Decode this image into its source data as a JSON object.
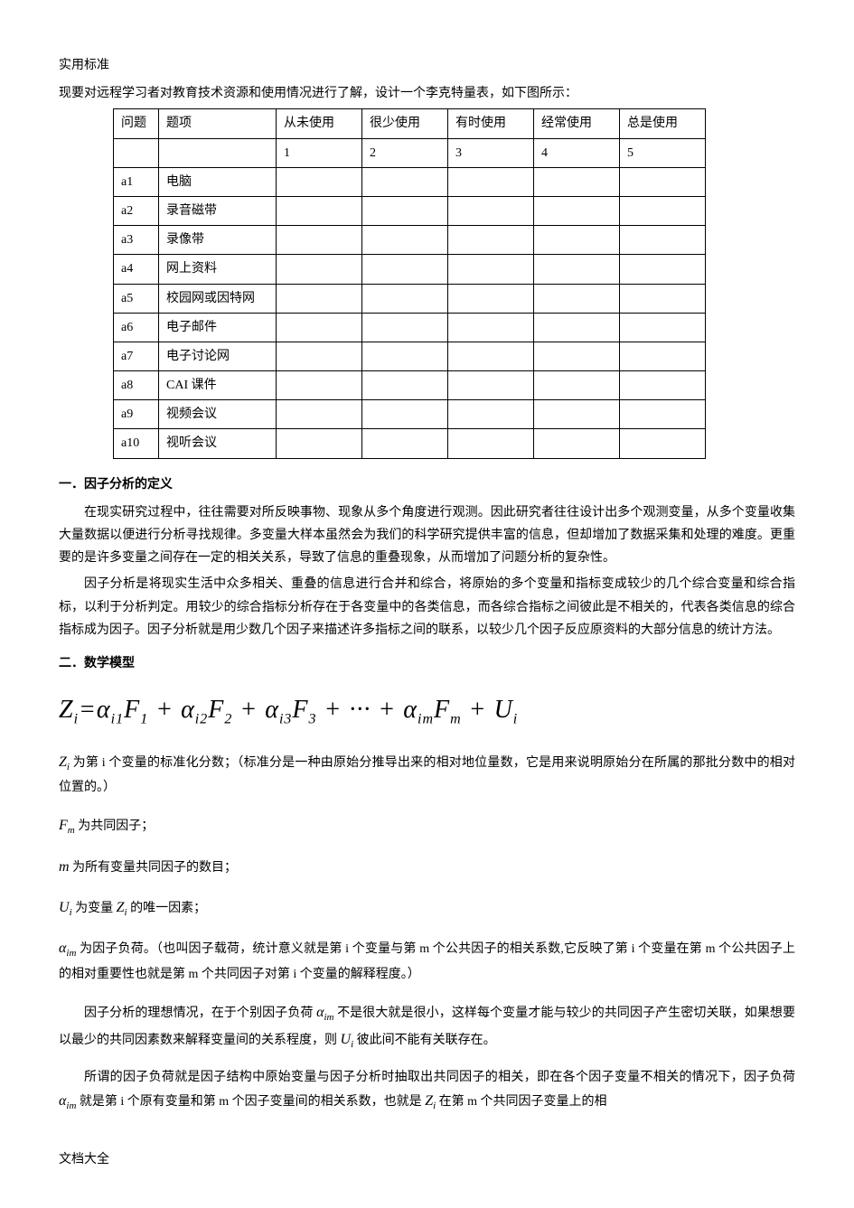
{
  "header": {
    "title": "实用标准",
    "intro": "现要对远程学习者对教育技术资源和使用情况进行了解，设计一个李克特量表，如下图所示："
  },
  "table": {
    "headers": {
      "question": "问题",
      "item": "题项",
      "scale1": "从未使用",
      "scale2": "很少使用",
      "scale3": "有时使用",
      "scale4": "经常使用",
      "scale5": "总是使用"
    },
    "scale_numbers": {
      "n1": "1",
      "n2": "2",
      "n3": "3",
      "n4": "4",
      "n5": "5"
    },
    "rows": [
      {
        "q": "a1",
        "item": "电脑"
      },
      {
        "q": "a2",
        "item": "录音磁带"
      },
      {
        "q": "a3",
        "item": "录像带"
      },
      {
        "q": "a4",
        "item": "网上资料"
      },
      {
        "q": "a5",
        "item": "校园网或因特网"
      },
      {
        "q": "a6",
        "item": "电子邮件"
      },
      {
        "q": "a7",
        "item": "电子讨论网"
      },
      {
        "q": "a8",
        "item": "CAI 课件"
      },
      {
        "q": "a9",
        "item": "视频会议"
      },
      {
        "q": "a10",
        "item": "视听会议"
      }
    ]
  },
  "sections": {
    "s1_heading": "一．因子分析的定义",
    "s1_p1": "在现实研究过程中，往往需要对所反映事物、现象从多个角度进行观测。因此研究者往往设计出多个观测变量，从多个变量收集大量数据以便进行分析寻找规律。多变量大样本虽然会为我们的科学研究提供丰富的信息，但却增加了数据采集和处理的难度。更重要的是许多变量之间存在一定的相关关系，导致了信息的重叠现象，从而增加了问题分析的复杂性。",
    "s1_p2": "因子分析是将现实生活中众多相关、重叠的信息进行合并和综合，将原始的多个变量和指标变成较少的几个综合变量和综合指标，以利于分析判定。用较少的综合指标分析存在于各变量中的各类信息，而各综合指标之间彼此是不相关的，代表各类信息的综合指标成为因子。因子分析就是用少数几个因子来描述许多指标之间的联系，以较少几个因子反应原资料的大部分信息的统计方法。",
    "s2_heading": "二．数学模型"
  },
  "formula_text": "Z<sub>i</sub>=α<sub>i1</sub>F<sub>1</sub> + α<sub>i2</sub>F<sub>2</sub> + α<sub>i3</sub>F<sub>3</sub> + ··· + α<sub>im</sub>F<sub>m</sub> + U<sub>i</sub>",
  "definitions": {
    "d1_pre": "Z",
    "d1_sub": "i",
    "d1_text": " 为第 i 个变量的标准化分数；（标准分是一种由原始分推导出来的相对地位量数，它是用来说明原始分在所属的那批分数中的相对位置的。）",
    "d2_pre": "F",
    "d2_sub": "m",
    "d2_text": " 为共同因子；",
    "d3_pre": "m",
    "d3_text": " 为所有变量共同因子的数目；",
    "d4_pre": "U",
    "d4_sub": "i",
    "d4_mid": " 为变量 ",
    "d4_pre2": "Z",
    "d4_sub2": "i",
    "d4_text": " 的唯一因素；",
    "d5_pre": "α",
    "d5_sub": "im",
    "d5_text": " 为因子负荷。（也叫因子载荷，统计意义就是第 i 个变量与第 m 个公共因子的相关系数,它反映了第 i 个变量在第 m 个公共因子上的相对重要性也就是第 m 个共同因子对第 i 个变量的解释程度。）"
  },
  "paragraphs": {
    "p1_a": "因子分析的理想情况，在于个别因子负荷 ",
    "p1_var": "α",
    "p1_sub": "im",
    "p1_b": " 不是很大就是很小，这样每个变量才能与较少的共同因子产生密切关联，如果想要以最少的共同因素数来解释变量间的关系程度，则 ",
    "p1_var2": "U",
    "p1_sub2": "i",
    "p1_c": " 彼此间不能有关联存在。",
    "p2_a": "所谓的因子负荷就是因子结构中原始变量与因子分析时抽取出共同因子的相关，即在各个因子变量不相关的情况下，因子负荷 ",
    "p2_var": "α",
    "p2_sub": "im",
    "p2_b": " 就是第 i 个原有变量和第 m 个因子变量间的相关系数，也就是 ",
    "p2_var2": "Z",
    "p2_sub2": "i",
    "p2_c": " 在第 m 个共同因子变量上的相"
  },
  "footer": "文档大全"
}
